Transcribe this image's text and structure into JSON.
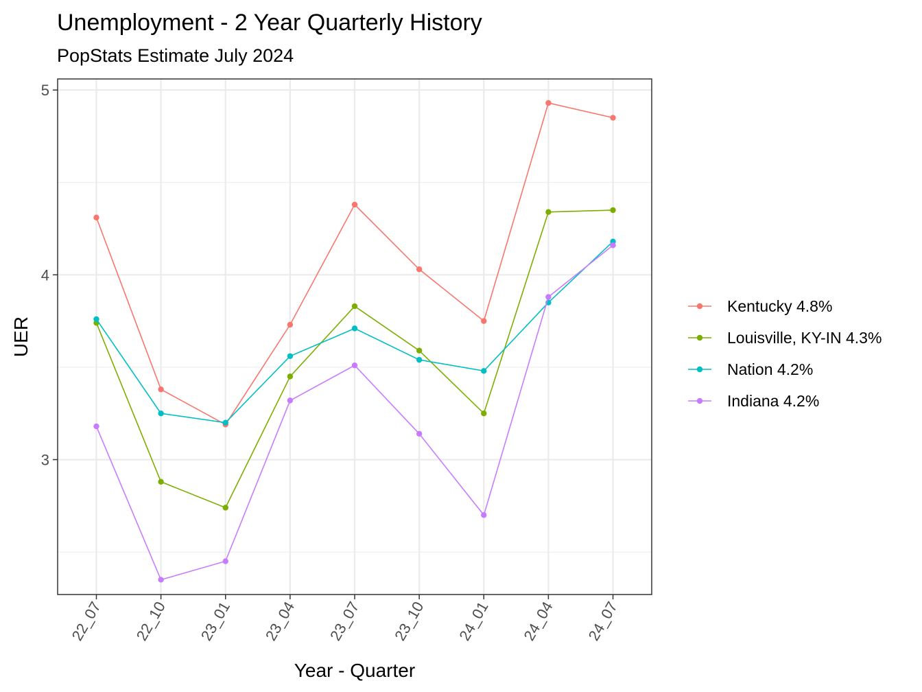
{
  "chart_data": {
    "type": "line",
    "title": "Unemployment - 2 Year Quarterly History",
    "subtitle": "PopStats Estimate July 2024",
    "xlabel": "Year - Quarter",
    "ylabel": "UER",
    "categories": [
      "22_07",
      "22_10",
      "23_01",
      "23_04",
      "23_07",
      "23_10",
      "24_01",
      "24_04",
      "24_07"
    ],
    "ylim": [
      2.27,
      5.06
    ],
    "yticks": [
      3,
      4,
      5
    ],
    "grid": true,
    "legend_position": "right",
    "series": [
      {
        "name": "Kentucky 4.8%",
        "color": "#F8766D",
        "values": [
          4.31,
          3.38,
          3.19,
          3.73,
          4.38,
          4.03,
          3.75,
          4.93,
          4.85
        ]
      },
      {
        "name": "Louisville, KY-IN 4.3%",
        "color": "#7CAE00",
        "values": [
          3.74,
          2.88,
          2.74,
          3.45,
          3.83,
          3.59,
          3.25,
          4.34,
          4.35
        ]
      },
      {
        "name": "Nation 4.2%",
        "color": "#00BFC4",
        "values": [
          3.76,
          3.25,
          3.2,
          3.56,
          3.71,
          3.54,
          3.48,
          3.85,
          4.18
        ]
      },
      {
        "name": "Indiana 4.2%",
        "color": "#C77CFF",
        "values": [
          3.18,
          2.35,
          2.45,
          3.32,
          3.51,
          3.14,
          2.7,
          3.88,
          4.16
        ]
      }
    ]
  }
}
